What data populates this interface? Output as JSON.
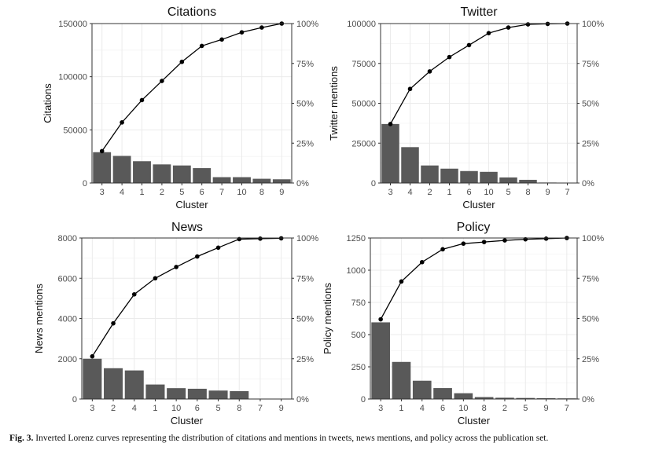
{
  "caption": {
    "label": "Fig. 3.",
    "text": "Inverted Lorenz curves representing the distribution of citations and mentions in tweets, news mentions, and policy across the publication set."
  },
  "colors": {
    "bar": "#595959",
    "line": "#000000",
    "grid": "#ebebeb",
    "border": "#333333"
  },
  "chart_data": [
    {
      "type": "bar",
      "title": "Citations",
      "xlabel": "Cluster",
      "ylabel": "Citations",
      "categories": [
        "3",
        "4",
        "1",
        "2",
        "5",
        "6",
        "7",
        "10",
        "8",
        "9"
      ],
      "values": [
        29000,
        25500,
        20500,
        17500,
        16500,
        14000,
        5500,
        5500,
        4000,
        3500
      ],
      "cumulative_percent": [
        20,
        38,
        52,
        64,
        76,
        86,
        90,
        94.5,
        97.5,
        100
      ],
      "ylim": [
        0,
        150000
      ],
      "yticks": [
        0,
        50000,
        100000,
        150000
      ],
      "y2lim": [
        0,
        100
      ],
      "y2ticks": [
        "0%",
        "25%",
        "50%",
        "75%",
        "100%"
      ],
      "grid": true
    },
    {
      "type": "bar",
      "title": "Twitter",
      "xlabel": "Cluster",
      "ylabel": "Twitter mentions",
      "categories": [
        "3",
        "4",
        "2",
        "1",
        "6",
        "10",
        "5",
        "8",
        "9",
        "7"
      ],
      "values": [
        37000,
        22500,
        11000,
        9000,
        7500,
        7000,
        3500,
        2000,
        300,
        100
      ],
      "cumulative_percent": [
        37,
        59,
        70,
        79,
        86.5,
        94,
        97.5,
        99.5,
        99.8,
        100
      ],
      "ylim": [
        0,
        100000
      ],
      "yticks": [
        0,
        25000,
        50000,
        75000,
        100000
      ],
      "y2lim": [
        0,
        100
      ],
      "y2ticks": [
        "0%",
        "25%",
        "50%",
        "75%",
        "100%"
      ],
      "grid": true
    },
    {
      "type": "bar",
      "title": "News",
      "xlabel": "Cluster",
      "ylabel": "News mentions",
      "categories": [
        "3",
        "2",
        "4",
        "1",
        "10",
        "6",
        "5",
        "8",
        "7",
        "9"
      ],
      "values": [
        2000,
        1530,
        1420,
        720,
        540,
        510,
        420,
        390,
        20,
        15
      ],
      "cumulative_percent": [
        26.5,
        47,
        65,
        75,
        82,
        88.5,
        94,
        99.3,
        99.6,
        99.8
      ],
      "ylim": [
        0,
        8000
      ],
      "yticks": [
        0,
        2000,
        4000,
        6000,
        8000
      ],
      "y2lim": [
        0,
        100
      ],
      "y2ticks": [
        "0%",
        "25%",
        "50%",
        "75%",
        "100%"
      ],
      "grid": true
    },
    {
      "type": "bar",
      "title": "Policy",
      "xlabel": "Cluster",
      "ylabel": "Policy mentions",
      "categories": [
        "3",
        "1",
        "4",
        "6",
        "10",
        "8",
        "2",
        "5",
        "9",
        "7"
      ],
      "values": [
        595,
        288,
        142,
        85,
        45,
        15,
        10,
        8,
        6,
        5
      ],
      "cumulative_percent": [
        49.5,
        73,
        85,
        93,
        96.5,
        97.5,
        98.5,
        99.2,
        99.6,
        100
      ],
      "ylim": [
        0,
        1250
      ],
      "yticks": [
        0,
        250,
        500,
        750,
        1000,
        1250
      ],
      "y2lim": [
        0,
        100
      ],
      "y2ticks": [
        "0%",
        "25%",
        "50%",
        "75%",
        "100%"
      ],
      "grid": true
    }
  ]
}
